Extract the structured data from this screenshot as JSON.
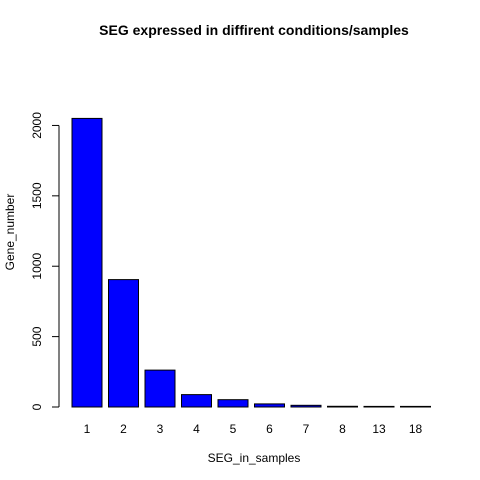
{
  "chart_data": {
    "type": "bar",
    "title": "SEG expressed in diffirent conditions/samples",
    "xlabel": "SEG_in_samples",
    "ylabel": "Gene_number",
    "categories": [
      "1",
      "2",
      "3",
      "4",
      "5",
      "6",
      "7",
      "8",
      "13",
      "18"
    ],
    "values": [
      2050,
      905,
      262,
      88,
      52,
      22,
      12,
      5,
      3,
      2
    ],
    "ylim": [
      0,
      2060
    ],
    "y_ticks": [
      0,
      500,
      1000,
      1500,
      2000
    ],
    "grid": false,
    "legend": "none",
    "bar_color": "#0000FF",
    "bar_border_color": "#000000"
  }
}
